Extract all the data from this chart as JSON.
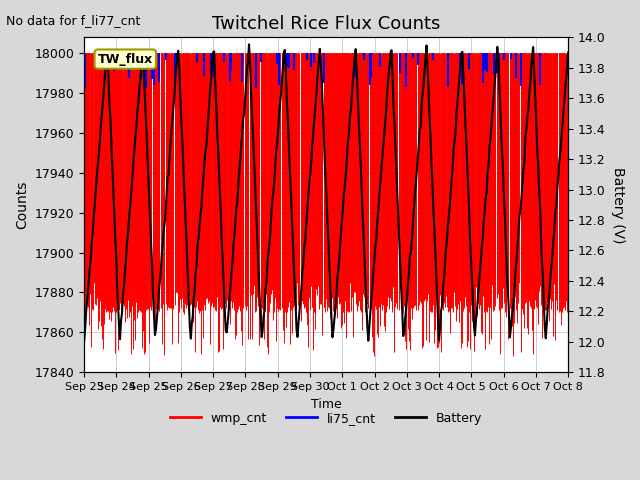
{
  "title": "Twitchel Rice Flux Counts",
  "no_data_text": "No data for f_li77_cnt",
  "ylabel_left": "Counts",
  "ylabel_right": "Battery (V)",
  "xlabel": "Time",
  "ylim_left": [
    17840,
    18008
  ],
  "ylim_right": [
    11.8,
    14.0
  ],
  "yticks_left": [
    17840,
    17860,
    17880,
    17900,
    17920,
    17940,
    17960,
    17980,
    18000
  ],
  "yticks_right": [
    11.8,
    12.0,
    12.2,
    12.4,
    12.6,
    12.8,
    13.0,
    13.2,
    13.4,
    13.6,
    13.8,
    14.0
  ],
  "xtick_labels": [
    "Sep 23",
    "Sep 24",
    "Sep 25",
    "Sep 26",
    "Sep 27",
    "Sep 28",
    "Sep 29",
    "Sep 30",
    "Oct 1",
    "Oct 2",
    "Oct 3",
    "Oct 4",
    "Oct 5",
    "Oct 6",
    "Oct 7",
    "Oct 8"
  ],
  "legend_box_text": "TW_flux",
  "legend_box_color": "#ffffcc",
  "wmp_color": "#ff0000",
  "li75_color": "#0000ff",
  "battery_color": "#000000",
  "bg_color": "#d8d8d8",
  "plot_bg_color": "#ffffff",
  "grid_color": "#bbbbbb",
  "n_wmp": 1800,
  "n_li75": 60,
  "wmp_floor": 17878,
  "wmp_floor_spread": 8,
  "wmp_spike_prob": 0.12,
  "wmp_spike_min": 17848,
  "wmp_spike_max": 17875,
  "battery_min": 12.0,
  "battery_max": 13.95,
  "battery_period_days": 1.1
}
